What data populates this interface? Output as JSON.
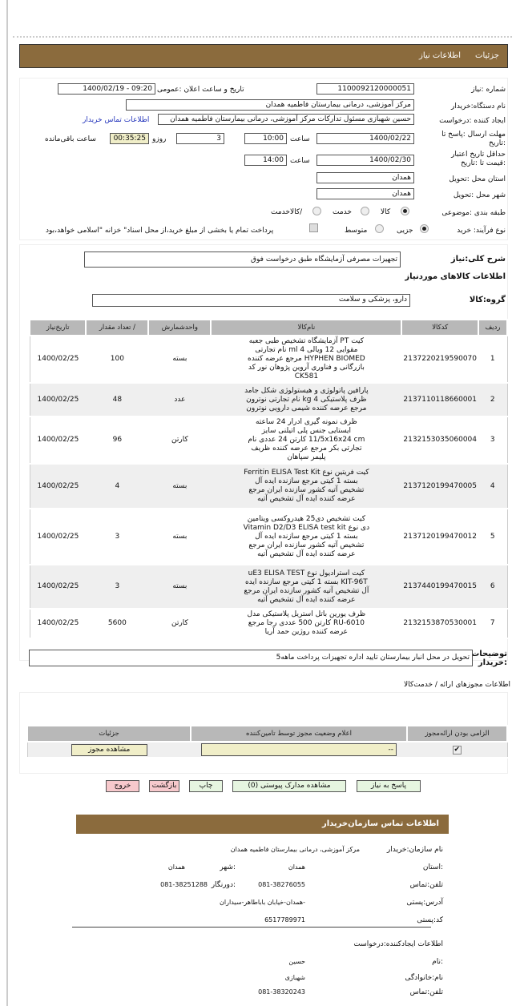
{
  "header": {
    "tabs": [
      {
        "label": "جزئیات"
      },
      {
        "label": "اطلاعات نیاز"
      }
    ]
  },
  "form": {
    "need_number": {
      "label": "شماره :نیاز",
      "value": "1100092120000051"
    },
    "announce": {
      "label": "تاریخ و ساعت اعلان :عمومی",
      "value": "1400/02/19 - 09:20"
    },
    "buyer": {
      "label": "نام دستگاه:خریدار",
      "value": "مرکز آموزشی، درمانی بیمارستان فاطمیه همدان"
    },
    "creator": {
      "label": "ایجاد کننده :درخواست",
      "value": "حسین  شهبازی مسئول تدارکات مرکز آموزشی، درمانی بیمارستان فاطمیه همدان",
      "link": "اطلاعات تماس خریدار"
    },
    "deadline": {
      "label": "مهلت ارسال :پاسخ تا :تاریخ",
      "date": "1400/02/22",
      "time_label": "ساعت",
      "time": "10:00",
      "days": "3",
      "days_label": "روزو",
      "remaining": "00:35:25",
      "remaining_label": "ساعت باقی‌مانده"
    },
    "validity": {
      "label": "حداقل تاریخ اعتبار :قیمت تا :تاریخ",
      "date": "1400/02/30",
      "time_label": "ساعت",
      "time": "14:00"
    },
    "province": {
      "label": "استان محل :تحویل",
      "value": "همدان"
    },
    "city": {
      "label": "شهر محل :تحویل",
      "value": "همدان"
    },
    "category": {
      "label": "طبقه بندی :موضوعی",
      "options": [
        {
          "label": "کالا",
          "selected": true
        },
        {
          "label": "خدمت",
          "selected": false
        },
        {
          "label": "/کالاخدمت",
          "selected": false
        }
      ]
    },
    "process": {
      "label": "نوع فرآیند: خرید",
      "options": [
        {
          "label": "جزیی",
          "selected": true
        },
        {
          "label": "متوسط",
          "selected": false
        }
      ],
      "payment_note": "پرداخت تمام یا بخشی از مبلغ خرید،از محل اسناد\" خزانه \"اسلامی خواهد،بود",
      "payment_checked": false
    }
  },
  "summary": {
    "label": "شرح کلی:نیاز",
    "value": "تجهیزات  مصرفی  آزمایشگاه  طبق  درخواست فوق",
    "goods_title": "اطلاعات  کالاهای موردنیاز",
    "group_label": "گروه:کالا",
    "group_value": "دارو، پزشکی  و سلامت"
  },
  "items_table": {
    "headers": [
      "ردیف",
      "کدکالا",
      "نام‌کالا",
      "واحدشمارش",
      "/ تعداد مقدار",
      "تاریخ‌نیاز"
    ],
    "rows": [
      {
        "n": "1",
        "code": "2137220219590070",
        "name": "کیت PT آزمایشگاه تشخیص طبی جعبه مقوایی 12 ویالی 4 ml نام تجارتی HYPHEN BIOMED مرجع عرضه کننده بازرگانی و فناوری آروین پژوهان نور کد CK581",
        "unit": "بسته",
        "qty": "100",
        "date": "1400/02/25"
      },
      {
        "n": "2",
        "code": "2137110118660001",
        "name": "پارافین پاتولوژی و هیستولوژی شکل جامد ظرف پلاستیکی 4 kg نام تجارتی نوترون مرجع عرضه کننده شیمی دارویی نوترون",
        "unit": "عدد",
        "qty": "48",
        "date": "1400/02/25"
      },
      {
        "n": "3",
        "code": "2132153035060004",
        "name": "ظرف نمونه گیری ادرار 24 ساعته ایستایی جنس پلی اتیلنی سایز 11/5x16x24 cm کارتن 24 عددی نام تجارتی بکر مرجع عرضه کننده ظریف پلیمر سپاهان",
        "unit": "کارتن",
        "qty": "96",
        "date": "1400/02/25"
      },
      {
        "n": "4",
        "code": "2137120199470005",
        "name": "کیت فریتین نوع Ferritin ELISA Test Kit بسته 1 کیتی مرجع سازنده ایده آل تشخیص آتیه کشور سازنده ایران مرجع عرضه کننده ایده آل تشخیص آتیه",
        "unit": "بسته",
        "qty": "4",
        "date": "1400/02/25"
      },
      {
        "n": "5",
        "code": "2137120199470012",
        "name": "کیت تشخیص دی25 هیدروکسی ویتامین دی نوع Vitamin D2/D3 ELISA test kit بسته 1 کیتی مرجع سازنده ایده آل تشخیص آتیه کشور سازنده ایران مرجع عرضه کننده ایده آل تشخیص آتیه",
        "unit": "بسته",
        "qty": "3",
        "date": "1400/02/25"
      },
      {
        "n": "6",
        "code": "2137440199470015",
        "name": "کیت استرادیول نوع uE3 ELISA TEST KIT-96T بسته 1 کیتی مرجع سازنده ایده آل تشخیص آتیه کشور سازنده ایران مرجع عرضه کننده ایده آل تشخیص آتیه",
        "unit": "بسته",
        "qty": "3",
        "date": "1400/02/25"
      },
      {
        "n": "7",
        "code": "2132153870530001",
        "name": "ظرف یورین باتل استریل پلاستیکی مدل RU-6010 کارتن 500 عددی رجا مرجع عرضه کننده روژین حمد آریا",
        "unit": "کارتن",
        "qty": "5600",
        "date": "1400/02/25"
      }
    ]
  },
  "notes": {
    "label": "توضیحات :خریدار",
    "value": "تحویل در محل انبار  بیمارستان تایید اداره تجهیزات پرداخت ماهه5"
  },
  "permits": {
    "title": "اطلاعات  مجوزهای ارائه / خدمت‌کالا",
    "headers": [
      "الزامی بودن ارائه‌مجوز",
      "اعلام وضعیت مجوز توسط  تامین‌کننده",
      "جزئیات"
    ],
    "row": {
      "required": true,
      "status": "--",
      "details_button": "مشاهده مجوز"
    }
  },
  "actions": {
    "reply": "پاسخ به نیاز",
    "attachments": "مشاهده مدارک پیوستی (0)",
    "print": "چاپ",
    "back": "بازگشت",
    "exit": "خروج"
  },
  "contact": {
    "title": "اطلاعات  تماس  سازمان‌خریدار",
    "org_label": "نام سازمان:خریدار",
    "org": "مرکز آموزشی، درمانی بیمارستان فاطمیه همدان",
    "province_label": ":استان",
    "province": "همدان",
    "city_label": ":شهر",
    "city": "همدان",
    "phone_label": "تلفن:تماس",
    "phone": "081-38276055",
    "fax_label": ":دورنگار",
    "fax": "081-38251288",
    "address_label": "آدرس:پستی",
    "address": "-همدان-خیابان باباطاهر-سیداران",
    "postal_label": "کد:پستی",
    "postal": "6517789971",
    "creator_title": "اطلاعات ایجادکننده:درخواست",
    "name_label": ":نام",
    "name": "حسین",
    "family_label": "نام:خانوادگی",
    "family": "شهبازی",
    "creator_phone_label": "تلفن:تماس",
    "creator_phone": "081-38320243"
  },
  "colors": {
    "brand_bar": "#8b6b3d",
    "timer_bg": "#f0eec8",
    "button_green": "#e6f5e0",
    "button_pink": "#f7c9cc"
  }
}
